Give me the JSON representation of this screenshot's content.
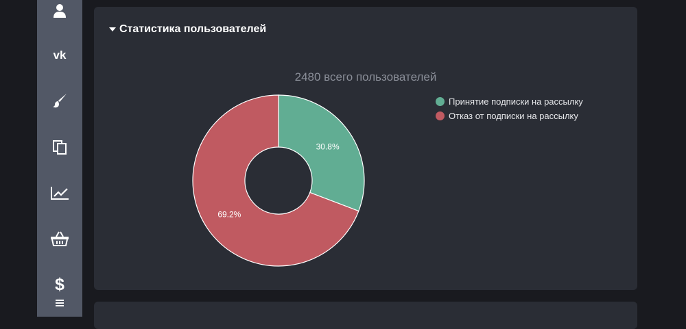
{
  "sidebar": {
    "items": [
      {
        "icon": "user-icon"
      },
      {
        "icon": "vk-icon"
      },
      {
        "icon": "paintbrush-icon"
      },
      {
        "icon": "copy-icon"
      },
      {
        "icon": "chart-line-icon"
      },
      {
        "icon": "basket-icon"
      },
      {
        "icon": "dollar-icon"
      },
      {
        "icon": "menu-icon"
      }
    ]
  },
  "panel": {
    "title": "Статистика пользователей"
  },
  "colors": {
    "accept": "#61ad93",
    "decline": "#c05a61",
    "panel_bg": "#2a2d35",
    "sidebar_bg": "#525866"
  },
  "chart_data": {
    "type": "pie",
    "title": "2480 всего пользователей",
    "legend_position": "right",
    "slices": [
      {
        "name": "Принятие подписки на рассылку",
        "value": 30.8,
        "label": "30.8%",
        "color": "#61ad93"
      },
      {
        "name": "Отказ от подписки на рассылку",
        "value": 69.2,
        "label": "69.2%",
        "color": "#c05a61"
      }
    ]
  }
}
